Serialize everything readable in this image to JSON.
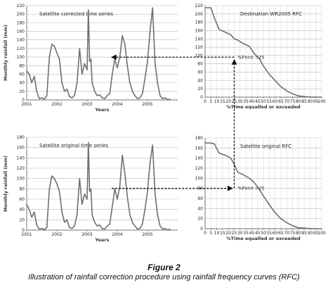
{
  "figure": {
    "title": "Figure 2",
    "caption": "Illustration of rainfall correction procedure using rainfall frequency curves (RFC)"
  },
  "chart_data": [
    {
      "id": "ts_corrected",
      "type": "line",
      "title": "Satellite corrected time series",
      "xlabel": "Years",
      "ylabel": "Monthly rainfall (mm)",
      "xlim": [
        2001,
        2006
      ],
      "ylim": [
        0,
        220
      ],
      "xticks": [
        "2001",
        "2002",
        "2003",
        "2004",
        "2005"
      ],
      "yticks": [
        "0",
        "20",
        "40",
        "60",
        "80",
        "100",
        "120",
        "140",
        "160",
        "180",
        "200",
        "220"
      ],
      "grid": true,
      "x": [
        2001.0,
        2001.083,
        2001.167,
        2001.25,
        2001.333,
        2001.417,
        2001.5,
        2001.583,
        2001.667,
        2001.75,
        2001.833,
        2001.917,
        2002.0,
        2002.083,
        2002.167,
        2002.25,
        2002.333,
        2002.417,
        2002.5,
        2002.583,
        2002.667,
        2002.75,
        2002.833,
        2002.917,
        2003.0,
        2003.042,
        2003.083,
        2003.125,
        2003.167,
        2003.25,
        2003.333,
        2003.417,
        2003.5,
        2003.583,
        2003.667,
        2003.75,
        2003.833,
        2003.917,
        2004.0,
        2004.083,
        2004.167,
        2004.25,
        2004.333,
        2004.417,
        2004.5,
        2004.583,
        2004.667,
        2004.75,
        2004.833,
        2004.917,
        2005.0,
        2005.083,
        2005.167,
        2005.25,
        2005.333,
        2005.417,
        2005.5,
        2005.583,
        2005.667,
        2005.75
      ],
      "y": [
        68,
        60,
        40,
        55,
        20,
        3,
        5,
        2,
        10,
        100,
        130,
        125,
        110,
        95,
        40,
        20,
        25,
        8,
        5,
        10,
        40,
        120,
        60,
        85,
        70,
        210,
        90,
        95,
        40,
        20,
        10,
        12,
        5,
        3,
        10,
        15,
        60,
        95,
        75,
        100,
        150,
        130,
        80,
        40,
        20,
        10,
        3,
        5,
        15,
        50,
        90,
        160,
        215,
        85,
        40,
        10,
        3,
        5,
        0,
        2
      ]
    },
    {
      "id": "rfc_destination",
      "type": "line",
      "title": "Destination WR2005 RFC",
      "xlabel": "%Time equalled or exceeded",
      "ylabel": "",
      "xlim": [
        0,
        100
      ],
      "ylim": [
        0,
        220
      ],
      "xticks": [
        "0",
        "5",
        "10",
        "15",
        "20",
        "25",
        "30",
        "35",
        "40",
        "45",
        "50",
        "55",
        "60",
        "65",
        "70",
        "75",
        "80",
        "85",
        "90",
        "95",
        "100"
      ],
      "yticks": [
        "0",
        "20",
        "40",
        "60",
        "80",
        "100",
        "120",
        "140",
        "160",
        "180",
        "200",
        "220"
      ],
      "grid": true,
      "x": [
        0,
        5,
        8,
        12,
        18,
        22,
        25,
        28,
        32,
        38,
        42,
        46,
        50,
        55,
        60,
        65,
        70,
        75,
        80,
        86,
        92,
        96,
        100
      ],
      "y": [
        215,
        215,
        190,
        163,
        155,
        150,
        140,
        137,
        130,
        122,
        105,
        95,
        75,
        55,
        40,
        25,
        15,
        8,
        3,
        1,
        0,
        0,
        0
      ],
      "annotation": "%Point =25"
    },
    {
      "id": "ts_original",
      "type": "line",
      "title": "Satellite original time series",
      "xlabel": "Years",
      "ylabel": "Monthly rainfall (mm)",
      "xlim": [
        2001,
        2006
      ],
      "ylim": [
        0,
        180
      ],
      "xticks": [
        "2001",
        "2002",
        "2003",
        "2004",
        "2005"
      ],
      "yticks": [
        "0",
        "20",
        "40",
        "60",
        "80",
        "100",
        "120",
        "140",
        "160",
        "180"
      ],
      "grid": true,
      "x": [
        2001.0,
        2001.083,
        2001.167,
        2001.25,
        2001.333,
        2001.417,
        2001.5,
        2001.583,
        2001.667,
        2001.75,
        2001.833,
        2001.917,
        2002.0,
        2002.083,
        2002.167,
        2002.25,
        2002.333,
        2002.417,
        2002.5,
        2002.583,
        2002.667,
        2002.75,
        2002.833,
        2002.917,
        2003.0,
        2003.042,
        2003.083,
        2003.125,
        2003.167,
        2003.25,
        2003.333,
        2003.417,
        2003.5,
        2003.583,
        2003.667,
        2003.75,
        2003.833,
        2003.917,
        2004.0,
        2004.083,
        2004.167,
        2004.25,
        2004.333,
        2004.417,
        2004.5,
        2004.583,
        2004.667,
        2004.75,
        2004.833,
        2004.917,
        2005.0,
        2005.083,
        2005.167,
        2005.25,
        2005.333,
        2005.417,
        2005.5,
        2005.583,
        2005.667,
        2005.75
      ],
      "y": [
        50,
        40,
        25,
        35,
        10,
        2,
        3,
        1,
        5,
        80,
        105,
        100,
        90,
        75,
        35,
        15,
        20,
        5,
        3,
        8,
        30,
        100,
        50,
        70,
        60,
        170,
        75,
        80,
        30,
        15,
        8,
        10,
        3,
        2,
        8,
        12,
        45,
        80,
        60,
        85,
        145,
        110,
        65,
        30,
        15,
        8,
        2,
        3,
        12,
        40,
        75,
        130,
        165,
        70,
        30,
        8,
        2,
        3,
        0,
        2
      ]
    },
    {
      "id": "rfc_original",
      "type": "line",
      "title": "Satellite original RFC",
      "xlabel": "%Time equalled or exceeded",
      "ylabel": "",
      "xlim": [
        0,
        100
      ],
      "ylim": [
        0,
        180
      ],
      "xticks": [
        "0",
        "5",
        "10",
        "15",
        "20",
        "25",
        "30",
        "35",
        "40",
        "45",
        "50",
        "55",
        "60",
        "65",
        "70",
        "75",
        "80",
        "85",
        "90",
        "95",
        "100"
      ],
      "yticks": [
        "0",
        "20",
        "40",
        "60",
        "80",
        "100",
        "120",
        "140",
        "160",
        "180"
      ],
      "grid": true,
      "x": [
        0,
        5,
        8,
        12,
        18,
        22,
        25,
        28,
        32,
        38,
        42,
        46,
        50,
        55,
        60,
        65,
        70,
        75,
        80,
        86,
        92,
        96,
        100
      ],
      "y": [
        170,
        170,
        168,
        150,
        145,
        140,
        128,
        112,
        108,
        100,
        92,
        80,
        65,
        48,
        32,
        20,
        12,
        6,
        2,
        1,
        0,
        0,
        0
      ],
      "annotation": "%Point =25"
    }
  ]
}
